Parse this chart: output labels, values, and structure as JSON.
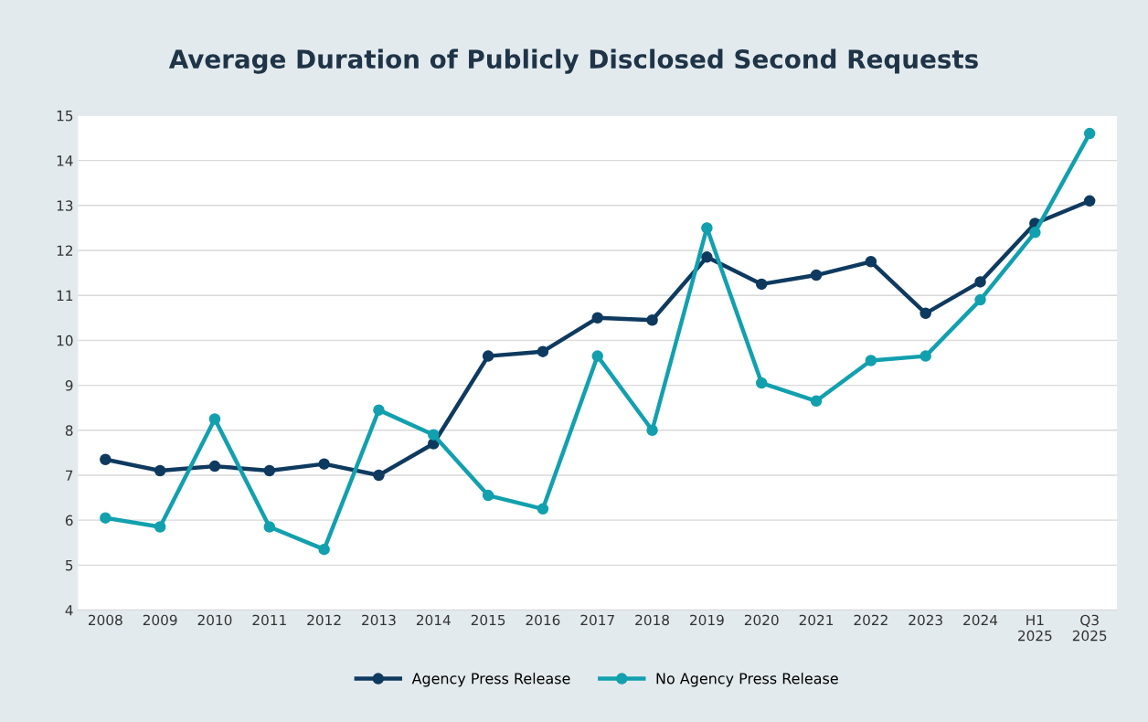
{
  "chart_data": {
    "type": "line",
    "title": "Average Duration of Publicly Disclosed Second Requests",
    "categories": [
      "2008",
      "2009",
      "2010",
      "2011",
      "2012",
      "2013",
      "2014",
      "2015",
      "2016",
      "2017",
      "2018",
      "2019",
      "2020",
      "2021",
      "2022",
      "2023",
      "2024",
      "H1\n2025",
      "Q3\n2025"
    ],
    "series": [
      {
        "name": "Agency Press Release",
        "color": "#0f3a5f",
        "values": [
          7.35,
          7.1,
          7.2,
          7.1,
          7.25,
          7.0,
          7.7,
          9.65,
          9.75,
          10.5,
          10.45,
          11.85,
          11.25,
          11.45,
          11.75,
          10.6,
          11.3,
          12.6,
          13.1
        ]
      },
      {
        "name": "No Agency Press Release",
        "color": "#12a0ae",
        "values": [
          6.05,
          5.85,
          8.25,
          5.85,
          5.35,
          8.45,
          7.9,
          6.55,
          6.25,
          9.65,
          8.0,
          12.5,
          9.05,
          8.65,
          9.55,
          9.65,
          10.9,
          12.4,
          14.6
        ]
      }
    ],
    "ylim": [
      4,
      15
    ],
    "yticks": [
      4,
      5,
      6,
      7,
      8,
      9,
      10,
      11,
      12,
      13,
      14,
      15
    ],
    "grid": "y",
    "legend": "bottom",
    "marker": "circle",
    "line_style": "solid"
  }
}
